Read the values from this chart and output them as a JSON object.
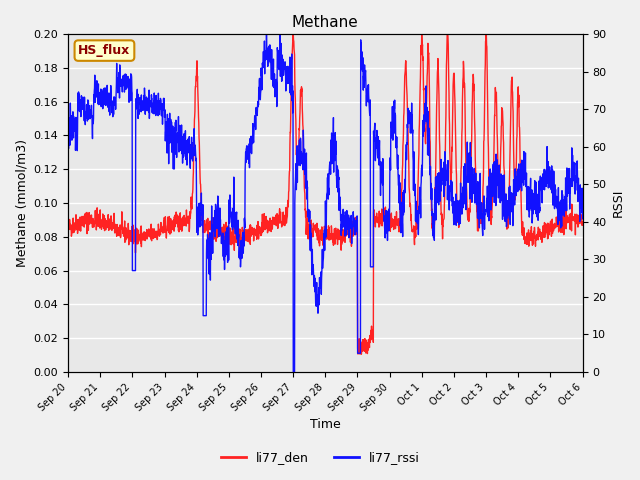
{
  "title": "Methane",
  "xlabel": "Time",
  "ylabel_left": "Methane (mmol/m3)",
  "ylabel_right": "RSSI",
  "ylim_left": [
    0.0,
    0.2
  ],
  "ylim_right": [
    0,
    90
  ],
  "yticks_left": [
    0.0,
    0.02,
    0.04,
    0.06,
    0.08,
    0.1,
    0.12,
    0.14,
    0.16,
    0.18,
    0.2
  ],
  "yticks_right": [
    0,
    10,
    20,
    30,
    40,
    50,
    60,
    70,
    80,
    90
  ],
  "bg_color": "#e8e8e8",
  "grid_color": "#ffffff",
  "line_color_den": "#ff2222",
  "line_color_rssi": "#1111ff",
  "legend_label_den": "li77_den",
  "legend_label_rssi": "li77_rssi",
  "box_label": "HS_flux",
  "box_bg": "#ffffcc",
  "box_border": "#cc8800"
}
